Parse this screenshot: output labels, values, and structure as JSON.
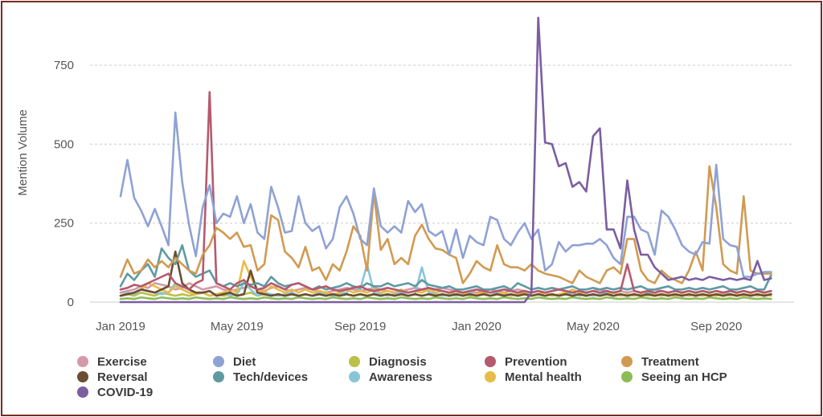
{
  "chart_data": {
    "type": "line",
    "title": "",
    "xlabel": "",
    "ylabel": "Mention Volume",
    "ylim": [
      0,
      900
    ],
    "yticks": [
      0,
      250,
      500,
      750
    ],
    "xticks": [
      {
        "label": "Jan 2019",
        "week": 0
      },
      {
        "label": "May 2019",
        "week": 17
      },
      {
        "label": "Sep 2019",
        "week": 35
      },
      {
        "label": "Jan 2020",
        "week": 52
      },
      {
        "label": "May 2020",
        "week": 69
      },
      {
        "label": "Sep 2020",
        "week": 87
      }
    ],
    "x_unit": "week",
    "grid": true,
    "legend_position": "bottom",
    "series": [
      {
        "name": "Exercise",
        "color": "#d49aaa",
        "values": [
          30,
          35,
          40,
          50,
          45,
          60,
          55,
          50,
          40,
          45,
          60,
          50,
          40,
          45,
          50,
          40,
          35,
          40,
          45,
          50,
          40,
          35,
          45,
          50,
          40,
          35,
          40,
          45,
          40,
          35,
          30,
          35,
          40,
          45,
          40,
          35,
          40,
          45,
          40,
          35,
          30,
          35,
          40,
          45,
          40,
          35,
          40,
          45,
          40,
          35,
          30,
          35,
          30,
          35,
          40,
          35,
          30,
          35,
          40,
          35,
          30,
          35,
          30,
          35,
          40,
          35,
          30,
          35,
          30,
          35,
          40,
          35,
          30,
          35,
          30,
          35,
          30,
          35,
          40,
          35,
          30,
          35,
          30,
          35,
          30,
          35,
          30,
          35,
          30,
          35,
          30,
          35,
          30,
          35,
          30,
          35
        ]
      },
      {
        "name": "Diet",
        "color": "#8fa2d4",
        "values": [
          335,
          450,
          330,
          290,
          240,
          295,
          240,
          180,
          600,
          380,
          245,
          145,
          300,
          370,
          250,
          280,
          270,
          335,
          250,
          310,
          220,
          200,
          365,
          300,
          220,
          225,
          335,
          250,
          225,
          240,
          170,
          200,
          300,
          335,
          280,
          200,
          180,
          360,
          240,
          220,
          240,
          220,
          320,
          285,
          310,
          225,
          210,
          225,
          150,
          230,
          140,
          210,
          190,
          180,
          270,
          260,
          200,
          180,
          220,
          250,
          200,
          230,
          100,
          120,
          190,
          160,
          180,
          180,
          185,
          185,
          200,
          180,
          140,
          120,
          270,
          270,
          230,
          220,
          150,
          290,
          270,
          230,
          180,
          160,
          150,
          190,
          185,
          435,
          200,
          180,
          175,
          80,
          80,
          90,
          95,
          95
        ]
      },
      {
        "name": "Diagnosis",
        "color": "#bcc04a",
        "values": [
          20,
          25,
          20,
          30,
          25,
          20,
          30,
          25,
          20,
          25,
          20,
          25,
          30,
          20,
          25,
          20,
          25,
          20,
          25,
          30,
          20,
          25,
          20,
          25,
          20,
          25,
          20,
          25,
          20,
          25,
          20,
          25,
          20,
          25,
          20,
          25,
          20,
          25,
          20,
          25,
          20,
          25,
          20,
          25,
          20,
          25,
          20,
          25,
          20,
          25,
          20,
          25,
          20,
          25,
          20,
          25,
          20,
          25,
          20,
          25,
          20,
          25,
          20,
          25,
          20,
          25,
          20,
          25,
          20,
          25,
          20,
          25,
          20,
          25,
          20,
          25,
          20,
          25,
          20,
          25,
          20,
          25,
          20,
          25,
          20,
          25,
          20,
          25,
          20,
          25,
          20,
          25,
          20,
          25,
          20,
          25
        ]
      },
      {
        "name": "Prevention",
        "color": "#b55a6e",
        "values": [
          40,
          45,
          55,
          50,
          60,
          70,
          80,
          90,
          60,
          50,
          40,
          60,
          70,
          665,
          60,
          50,
          40,
          60,
          70,
          50,
          40,
          45,
          60,
          50,
          40,
          55,
          60,
          50,
          40,
          45,
          50,
          40,
          35,
          40,
          45,
          50,
          40,
          35,
          40,
          45,
          40,
          35,
          30,
          35,
          40,
          45,
          40,
          35,
          30,
          35,
          30,
          35,
          40,
          35,
          30,
          35,
          40,
          35,
          30,
          35,
          30,
          35,
          30,
          35,
          40,
          35,
          30,
          35,
          30,
          35,
          30,
          35,
          30,
          35,
          120,
          35,
          30,
          35,
          30,
          35,
          30,
          35,
          30,
          35,
          30,
          35,
          30,
          35,
          30,
          35,
          30,
          35,
          30,
          35,
          30,
          35
        ]
      },
      {
        "name": "Treatment",
        "color": "#d19a52",
        "values": [
          80,
          135,
          90,
          100,
          135,
          110,
          130,
          110,
          140,
          120,
          100,
          90,
          150,
          180,
          235,
          220,
          200,
          220,
          175,
          180,
          100,
          120,
          275,
          260,
          160,
          140,
          110,
          175,
          100,
          110,
          70,
          120,
          100,
          160,
          240,
          210,
          100,
          345,
          165,
          200,
          120,
          140,
          120,
          210,
          245,
          200,
          170,
          165,
          150,
          140,
          60,
          90,
          130,
          110,
          100,
          180,
          120,
          110,
          110,
          100,
          120,
          100,
          90,
          85,
          80,
          70,
          60,
          100,
          80,
          70,
          60,
          100,
          110,
          90,
          200,
          200,
          100,
          70,
          60,
          100,
          80,
          70,
          60,
          100,
          160,
          100,
          430,
          300,
          120,
          100,
          90,
          335,
          100,
          90,
          90,
          90
        ]
      },
      {
        "name": "Reversal",
        "color": "#6b4e31",
        "values": [
          20,
          25,
          30,
          40,
          35,
          30,
          40,
          50,
          160,
          60,
          40,
          30,
          30,
          35,
          20,
          25,
          30,
          20,
          25,
          100,
          30,
          25,
          20,
          25,
          20,
          25,
          20,
          25,
          20,
          25,
          20,
          25,
          20,
          25,
          20,
          25,
          20,
          25,
          20,
          25,
          20,
          25,
          20,
          25,
          20,
          25,
          20,
          25,
          20,
          25,
          20,
          25,
          20,
          25,
          20,
          25,
          20,
          25,
          20,
          25,
          20,
          25,
          20,
          25,
          20,
          25,
          20,
          25,
          20,
          25,
          20,
          25,
          20,
          25,
          20,
          25,
          20,
          25,
          20,
          25,
          20,
          25,
          20,
          25,
          20,
          25,
          20,
          25,
          20,
          25,
          20,
          25,
          20,
          25,
          20,
          25
        ]
      },
      {
        "name": "Tech/devices",
        "color": "#5f9aa3",
        "values": [
          50,
          90,
          70,
          100,
          120,
          80,
          170,
          140,
          120,
          180,
          100,
          80,
          90,
          100,
          60,
          50,
          60,
          50,
          60,
          55,
          60,
          50,
          80,
          60,
          50,
          55,
          60,
          50,
          40,
          50,
          40,
          45,
          50,
          60,
          50,
          45,
          60,
          50,
          50,
          60,
          50,
          55,
          60,
          50,
          70,
          55,
          50,
          45,
          50,
          40,
          40,
          45,
          50,
          40,
          40,
          45,
          50,
          40,
          60,
          50,
          40,
          45,
          40,
          45,
          40,
          45,
          50,
          40,
          40,
          45,
          40,
          45,
          40,
          45,
          40,
          45,
          50,
          40,
          40,
          45,
          50,
          40,
          40,
          45,
          40,
          45,
          40,
          45,
          50,
          40,
          40,
          45,
          50,
          40,
          40,
          85
        ]
      },
      {
        "name": "Awareness",
        "color": "#89c5d8",
        "values": [
          20,
          30,
          25,
          40,
          35,
          30,
          25,
          30,
          60,
          40,
          30,
          25,
          30,
          20,
          25,
          30,
          20,
          25,
          60,
          40,
          20,
          30,
          25,
          20,
          25,
          30,
          20,
          25,
          20,
          30,
          25,
          20,
          25,
          30,
          50,
          40,
          120,
          30,
          25,
          20,
          25,
          30,
          20,
          25,
          110,
          30,
          25,
          20,
          25,
          20,
          25,
          30,
          20,
          25,
          20,
          30,
          25,
          20,
          25,
          30,
          20,
          25,
          20,
          25,
          20,
          25,
          30,
          20,
          25,
          20,
          25,
          30,
          20,
          25,
          20,
          25,
          20,
          30,
          25,
          20,
          25,
          20,
          25,
          20,
          25,
          20,
          25,
          20,
          30,
          25,
          20,
          25,
          20,
          25,
          20,
          25
        ]
      },
      {
        "name": "Mental health",
        "color": "#e8bc48",
        "values": [
          20,
          25,
          30,
          40,
          60,
          50,
          40,
          30,
          50,
          40,
          30,
          25,
          30,
          20,
          25,
          30,
          40,
          30,
          130,
          80,
          40,
          30,
          50,
          40,
          30,
          40,
          30,
          40,
          30,
          35,
          30,
          25,
          30,
          40,
          30,
          35,
          30,
          40,
          30,
          35,
          30,
          40,
          30,
          35,
          30,
          40,
          30,
          35,
          30,
          25,
          30,
          20,
          25,
          30,
          20,
          25,
          30,
          20,
          25,
          30,
          20,
          25,
          30,
          20,
          25,
          30,
          40,
          30,
          20,
          25,
          20,
          25,
          30,
          20,
          25,
          20,
          25,
          20,
          25,
          20,
          25,
          20,
          25,
          20,
          25,
          20,
          25,
          20,
          25,
          20,
          25,
          20,
          25,
          20,
          25,
          20
        ]
      },
      {
        "name": "Seeing an HCP",
        "color": "#8cbc58",
        "values": [
          10,
          12,
          10,
          15,
          12,
          10,
          15,
          12,
          10,
          12,
          10,
          15,
          12,
          10,
          12,
          10,
          15,
          12,
          10,
          12,
          10,
          15,
          12,
          10,
          12,
          10,
          15,
          12,
          10,
          12,
          10,
          15,
          12,
          10,
          12,
          10,
          15,
          12,
          10,
          12,
          10,
          15,
          12,
          10,
          12,
          10,
          15,
          12,
          10,
          12,
          10,
          15,
          12,
          10,
          12,
          10,
          15,
          12,
          10,
          12,
          10,
          15,
          12,
          10,
          12,
          10,
          15,
          12,
          10,
          12,
          10,
          15,
          12,
          10,
          12,
          10,
          15,
          12,
          10,
          12,
          10,
          15,
          12,
          10,
          12,
          10,
          15,
          12,
          10,
          12,
          10,
          15,
          12,
          10,
          12,
          10
        ]
      },
      {
        "name": "COVID-19",
        "color": "#7b5ea0",
        "values": [
          0,
          0,
          0,
          0,
          0,
          0,
          0,
          0,
          0,
          0,
          0,
          0,
          0,
          0,
          0,
          0,
          0,
          0,
          0,
          0,
          0,
          0,
          0,
          0,
          0,
          0,
          0,
          0,
          0,
          0,
          0,
          0,
          0,
          0,
          0,
          0,
          0,
          0,
          0,
          0,
          0,
          0,
          0,
          0,
          0,
          0,
          0,
          0,
          0,
          0,
          0,
          0,
          0,
          0,
          0,
          0,
          0,
          0,
          0,
          0,
          30,
          900,
          505,
          500,
          430,
          440,
          365,
          380,
          350,
          525,
          550,
          230,
          230,
          170,
          385,
          230,
          150,
          150,
          110,
          90,
          70,
          75,
          80,
          70,
          75,
          70,
          80,
          75,
          70,
          75,
          70,
          75,
          70,
          130,
          70,
          75
        ]
      }
    ]
  }
}
